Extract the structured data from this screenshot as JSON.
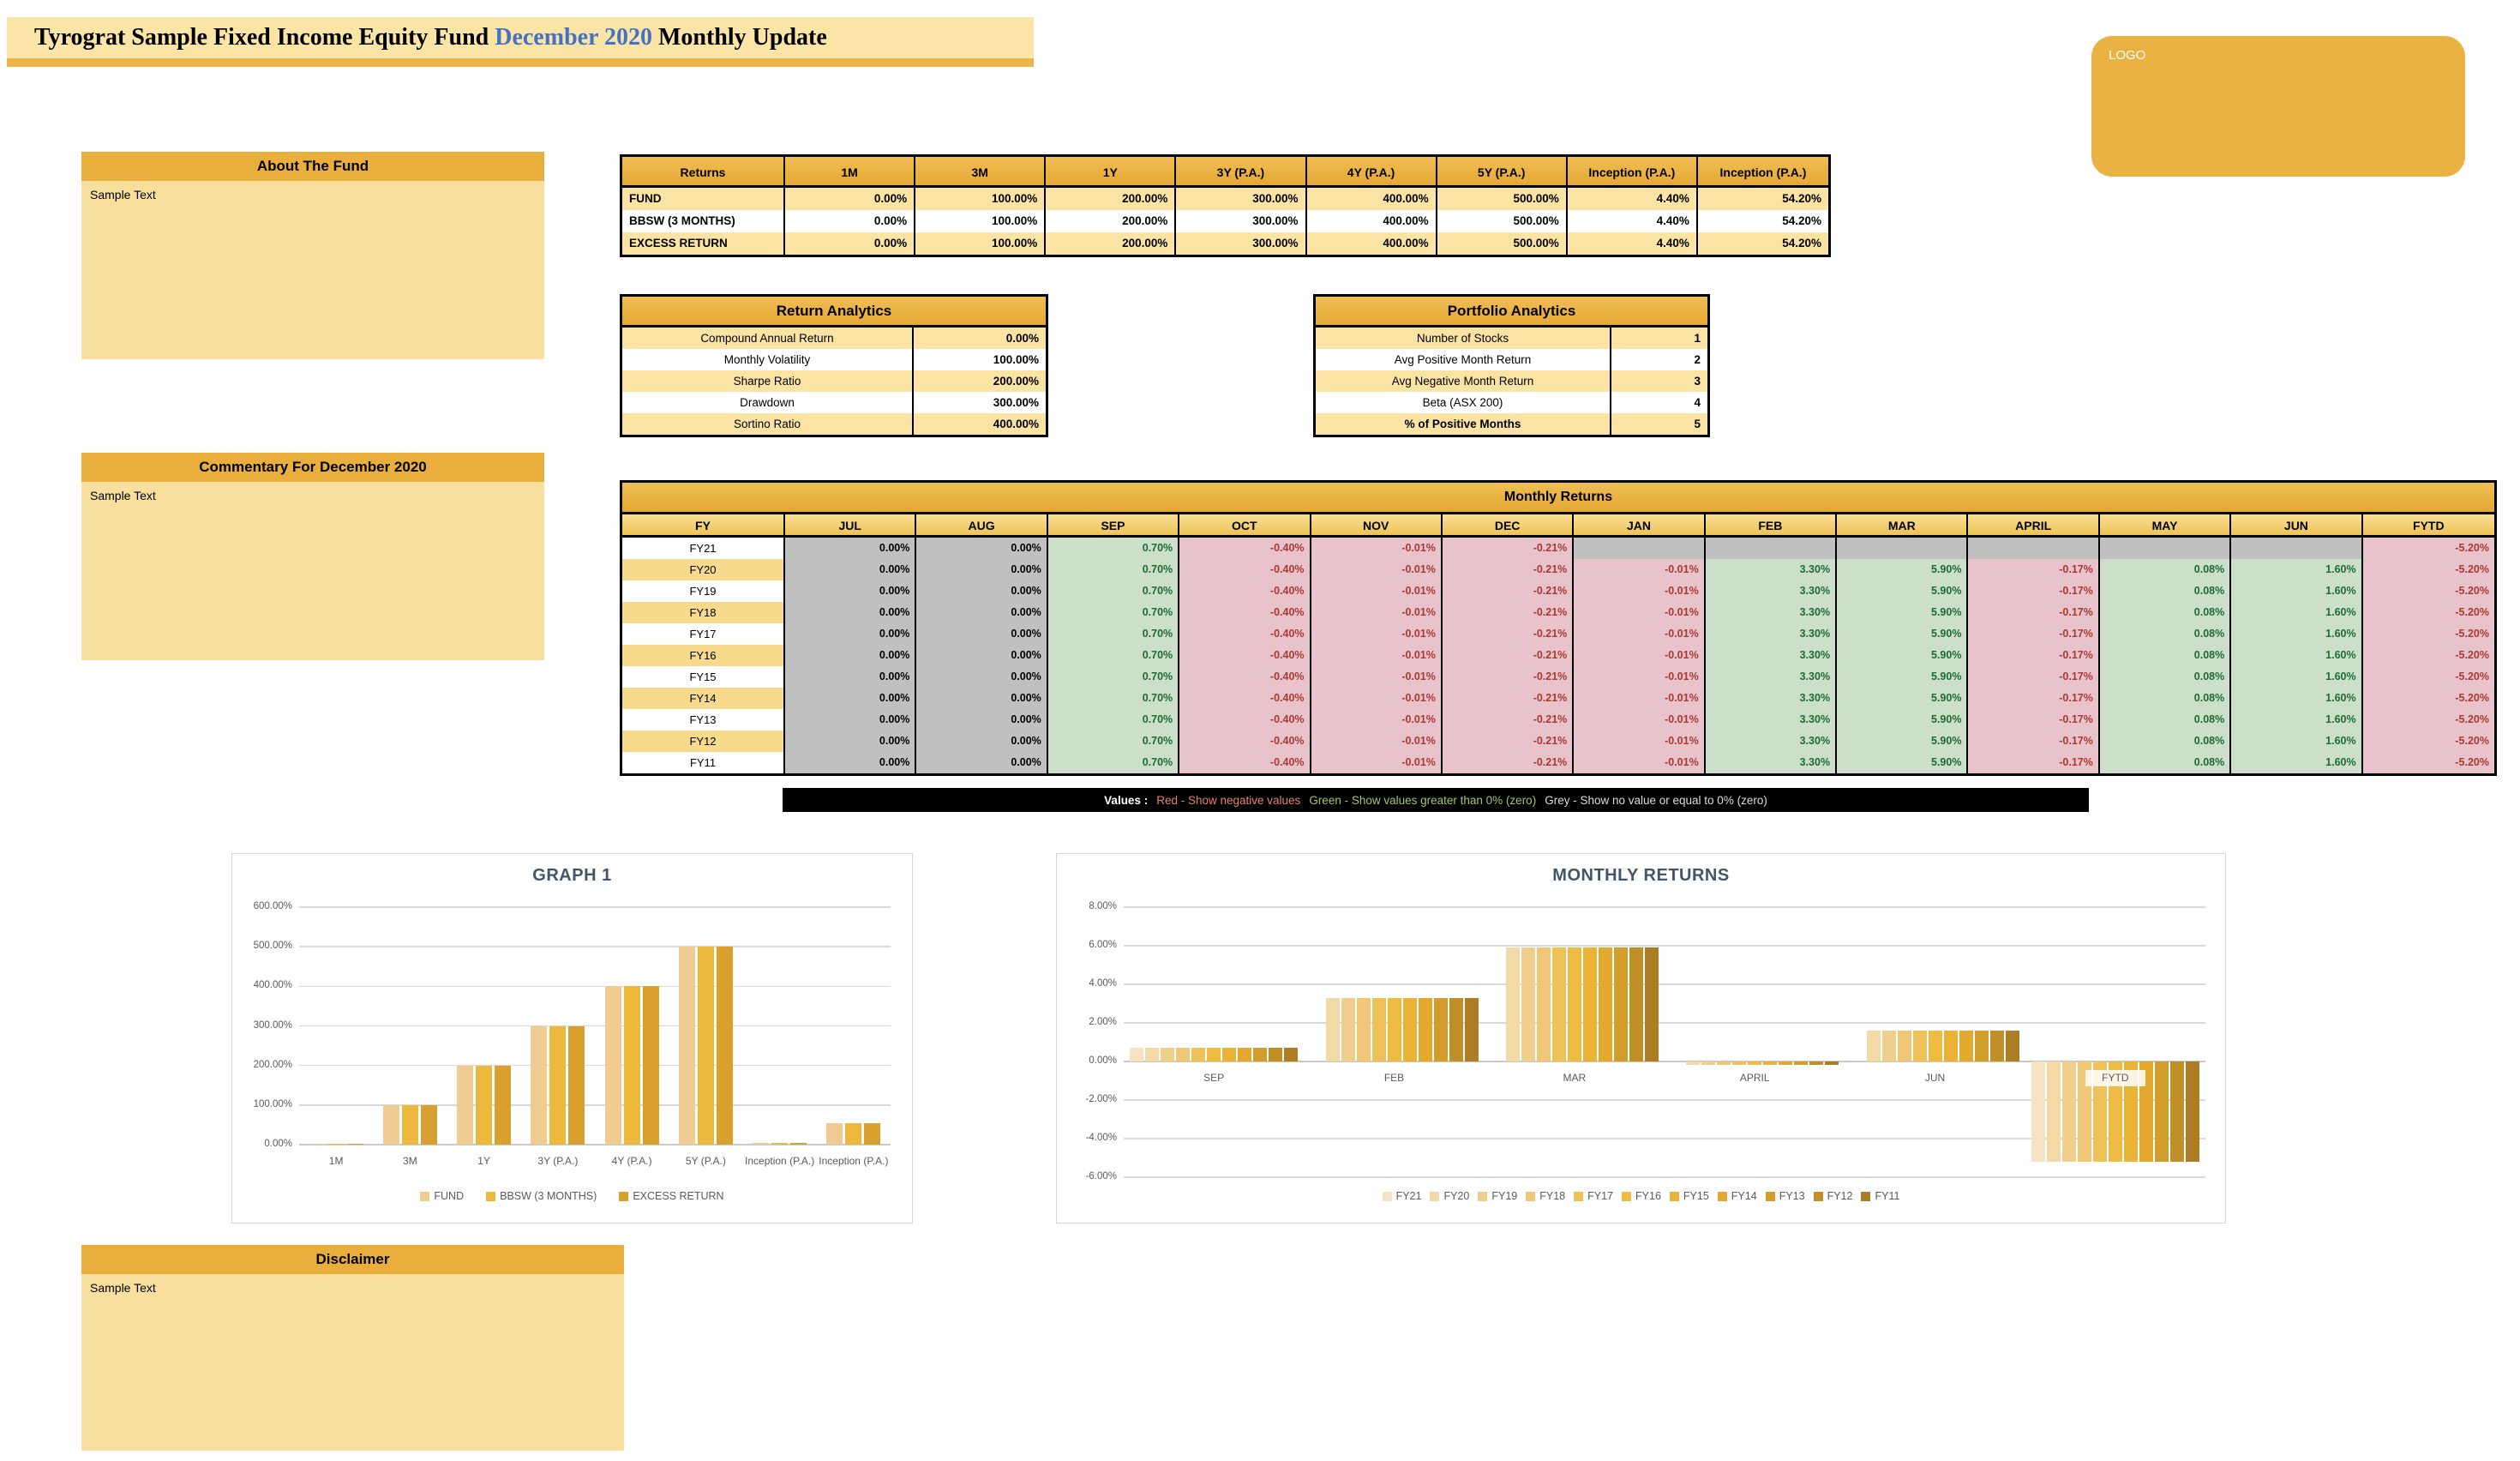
{
  "title": {
    "prefix": "Tyrograt Sample Fixed Income Equity Fund ",
    "highlight": "December 2020",
    "suffix": " Monthly Update"
  },
  "logo": {
    "label": "LOGO"
  },
  "about": {
    "header": "About The Fund",
    "body": "Sample Text"
  },
  "commentary": {
    "header": "Commentary For December 2020",
    "body": "Sample Text"
  },
  "disclaimer": {
    "header": "Disclaimer",
    "body": "Sample Text"
  },
  "returns_table": {
    "headers": [
      "Returns",
      "1M",
      "3M",
      "1Y",
      "3Y (P.A.)",
      "4Y (P.A.)",
      "5Y (P.A.)",
      "Inception (P.A.)",
      "Inception (P.A.)"
    ],
    "rows": [
      {
        "label": "FUND",
        "values": [
          "0.00%",
          "100.00%",
          "200.00%",
          "300.00%",
          "400.00%",
          "500.00%",
          "4.40%",
          "54.20%"
        ]
      },
      {
        "label": "BBSW (3 MONTHS)",
        "values": [
          "0.00%",
          "100.00%",
          "200.00%",
          "300.00%",
          "400.00%",
          "500.00%",
          "4.40%",
          "54.20%"
        ]
      },
      {
        "label": "EXCESS RETURN",
        "values": [
          "0.00%",
          "100.00%",
          "200.00%",
          "300.00%",
          "400.00%",
          "500.00%",
          "4.40%",
          "54.20%"
        ]
      }
    ]
  },
  "return_analytics": {
    "header": "Return Analytics",
    "rows": [
      {
        "label": "Compound Annual Return",
        "value": "0.00%",
        "bold": false
      },
      {
        "label": "Monthly Volatility",
        "value": "100.00%",
        "bold": false
      },
      {
        "label": "Sharpe Ratio",
        "value": "200.00%",
        "bold": false
      },
      {
        "label": "Drawdown",
        "value": "300.00%",
        "bold": false
      },
      {
        "label": "Sortino Ratio",
        "value": "400.00%",
        "bold": false
      }
    ]
  },
  "portfolio_analytics": {
    "header": "Portfolio Analytics",
    "rows": [
      {
        "label": "Number of Stocks",
        "value": "1",
        "bold": false
      },
      {
        "label": "Avg Positive Month Return",
        "value": "2",
        "bold": false
      },
      {
        "label": "Avg Negative Month Return",
        "value": "3",
        "bold": false
      },
      {
        "label": "Beta (ASX 200)",
        "value": "4",
        "bold": false
      },
      {
        "label": "% of Positive Months",
        "value": "5",
        "bold": true
      }
    ]
  },
  "monthly_table": {
    "title": "Monthly Returns",
    "columns": [
      "FY",
      "JUL",
      "AUG",
      "SEP",
      "OCT",
      "NOV",
      "DEC",
      "JAN",
      "FEB",
      "MAR",
      "APRIL",
      "MAY",
      "JUN",
      "FYTD"
    ],
    "rows": [
      {
        "fy": "FY21",
        "values": [
          "0.00%",
          "0.00%",
          "0.70%",
          "-0.40%",
          "-0.01%",
          "-0.21%",
          "",
          "",
          "",
          "",
          "",
          "",
          "-5.20%"
        ]
      },
      {
        "fy": "FY20",
        "values": [
          "0.00%",
          "0.00%",
          "0.70%",
          "-0.40%",
          "-0.01%",
          "-0.21%",
          "-0.01%",
          "3.30%",
          "5.90%",
          "-0.17%",
          "0.08%",
          "1.60%",
          "-5.20%"
        ]
      },
      {
        "fy": "FY19",
        "values": [
          "0.00%",
          "0.00%",
          "0.70%",
          "-0.40%",
          "-0.01%",
          "-0.21%",
          "-0.01%",
          "3.30%",
          "5.90%",
          "-0.17%",
          "0.08%",
          "1.60%",
          "-5.20%"
        ]
      },
      {
        "fy": "FY18",
        "values": [
          "0.00%",
          "0.00%",
          "0.70%",
          "-0.40%",
          "-0.01%",
          "-0.21%",
          "-0.01%",
          "3.30%",
          "5.90%",
          "-0.17%",
          "0.08%",
          "1.60%",
          "-5.20%"
        ]
      },
      {
        "fy": "FY17",
        "values": [
          "0.00%",
          "0.00%",
          "0.70%",
          "-0.40%",
          "-0.01%",
          "-0.21%",
          "-0.01%",
          "3.30%",
          "5.90%",
          "-0.17%",
          "0.08%",
          "1.60%",
          "-5.20%"
        ]
      },
      {
        "fy": "FY16",
        "values": [
          "0.00%",
          "0.00%",
          "0.70%",
          "-0.40%",
          "-0.01%",
          "-0.21%",
          "-0.01%",
          "3.30%",
          "5.90%",
          "-0.17%",
          "0.08%",
          "1.60%",
          "-5.20%"
        ]
      },
      {
        "fy": "FY15",
        "values": [
          "0.00%",
          "0.00%",
          "0.70%",
          "-0.40%",
          "-0.01%",
          "-0.21%",
          "-0.01%",
          "3.30%",
          "5.90%",
          "-0.17%",
          "0.08%",
          "1.60%",
          "-5.20%"
        ]
      },
      {
        "fy": "FY14",
        "values": [
          "0.00%",
          "0.00%",
          "0.70%",
          "-0.40%",
          "-0.01%",
          "-0.21%",
          "-0.01%",
          "3.30%",
          "5.90%",
          "-0.17%",
          "0.08%",
          "1.60%",
          "-5.20%"
        ]
      },
      {
        "fy": "FY13",
        "values": [
          "0.00%",
          "0.00%",
          "0.70%",
          "-0.40%",
          "-0.01%",
          "-0.21%",
          "-0.01%",
          "3.30%",
          "5.90%",
          "-0.17%",
          "0.08%",
          "1.60%",
          "-5.20%"
        ]
      },
      {
        "fy": "FY12",
        "values": [
          "0.00%",
          "0.00%",
          "0.70%",
          "-0.40%",
          "-0.01%",
          "-0.21%",
          "-0.01%",
          "3.30%",
          "5.90%",
          "-0.17%",
          "0.08%",
          "1.60%",
          "-5.20%"
        ]
      },
      {
        "fy": "FY11",
        "values": [
          "0.00%",
          "0.00%",
          "0.70%",
          "-0.40%",
          "-0.01%",
          "-0.21%",
          "-0.01%",
          "3.30%",
          "5.90%",
          "-0.17%",
          "0.08%",
          "1.60%",
          "-5.20%"
        ]
      }
    ]
  },
  "values_legend": {
    "label": "Values :",
    "items": [
      {
        "text": "Red - Show negative values",
        "color": "#E8826F"
      },
      {
        "text": "Green - Show values greater than 0% (zero)",
        "color": "#A9C36E"
      },
      {
        "text": "Grey - Show no value or equal to 0% (zero)",
        "color": "#DDDDDD"
      }
    ]
  },
  "colors": {
    "accent_gold": "#E9AE3B",
    "cream": "#F8DF9E",
    "grey_cell": "#C1C0C0",
    "positive_bg": "#CBDFC9",
    "positive_text": "#1F6B35",
    "negative_bg": "#E9C3CC",
    "negative_text": "#A93931",
    "title_highlight": "#4472C4",
    "chart_title": "#44546A"
  },
  "chart_data": [
    {
      "type": "bar",
      "title": "GRAPH 1",
      "categories": [
        "1M",
        "3M",
        "1Y",
        "3Y (P.A.)",
        "4Y (P.A.)",
        "5Y (P.A.)",
        "Inception (P.A.)",
        "Inception (P.A.)"
      ],
      "series": [
        {
          "name": "FUND",
          "color": "#F0CC92",
          "values": [
            0,
            100,
            200,
            300,
            400,
            500,
            4.4,
            54.2
          ]
        },
        {
          "name": "BBSW (3 MONTHS)",
          "color": "#EDB93D",
          "values": [
            0,
            100,
            200,
            300,
            400,
            500,
            4.4,
            54.2
          ]
        },
        {
          "name": "EXCESS RETURN",
          "color": "#D9A02D",
          "values": [
            0,
            100,
            200,
            300,
            400,
            500,
            4.4,
            54.2
          ]
        }
      ],
      "ylim": [
        0,
        600
      ],
      "yticks": [
        "0.00%",
        "100.00%",
        "200.00%",
        "300.00%",
        "400.00%",
        "500.00%",
        "600.00%"
      ],
      "grid": true,
      "legend_position": "bottom"
    },
    {
      "type": "bar",
      "title": "MONTHLY RETURNS",
      "categories": [
        "SEP",
        "FEB",
        "MAR",
        "APRIL",
        "JUN",
        "FYTD"
      ],
      "series": [
        {
          "name": "FY21",
          "color": "#F5E3C3",
          "values": [
            0.7,
            null,
            null,
            null,
            null,
            -5.2
          ]
        },
        {
          "name": "FY20",
          "color": "#F2D9A6",
          "values": [
            0.7,
            3.3,
            5.9,
            -0.17,
            1.6,
            -5.2
          ]
        },
        {
          "name": "FY19",
          "color": "#F0CF8D",
          "values": [
            0.7,
            3.3,
            5.9,
            -0.17,
            1.6,
            -5.2
          ]
        },
        {
          "name": "FY18",
          "color": "#EFC776",
          "values": [
            0.7,
            3.3,
            5.9,
            -0.17,
            1.6,
            -5.2
          ]
        },
        {
          "name": "FY17",
          "color": "#EFC159",
          "values": [
            0.7,
            3.3,
            5.9,
            -0.17,
            1.6,
            -5.2
          ]
        },
        {
          "name": "FY16",
          "color": "#EFBB42",
          "values": [
            0.7,
            3.3,
            5.9,
            -0.17,
            1.6,
            -5.2
          ]
        },
        {
          "name": "FY15",
          "color": "#EBB335",
          "values": [
            0.7,
            3.3,
            5.9,
            -0.17,
            1.6,
            -5.2
          ]
        },
        {
          "name": "FY14",
          "color": "#E2A92E",
          "values": [
            0.7,
            3.3,
            5.9,
            -0.17,
            1.6,
            -5.2
          ]
        },
        {
          "name": "FY13",
          "color": "#D39D2B",
          "values": [
            0.7,
            3.3,
            5.9,
            -0.17,
            1.6,
            -5.2
          ]
        },
        {
          "name": "FY12",
          "color": "#C18F27",
          "values": [
            0.7,
            3.3,
            5.9,
            -0.17,
            1.6,
            -5.2
          ]
        },
        {
          "name": "FY11",
          "color": "#AC7D22",
          "values": [
            0.7,
            3.3,
            5.9,
            -0.17,
            1.6,
            -5.2
          ]
        }
      ],
      "ylim": [
        -6,
        8
      ],
      "yticks": [
        "-6.00%",
        "-4.00%",
        "-2.00%",
        "0.00%",
        "2.00%",
        "4.00%",
        "6.00%",
        "8.00%"
      ],
      "grid": true,
      "legend_position": "bottom"
    }
  ]
}
